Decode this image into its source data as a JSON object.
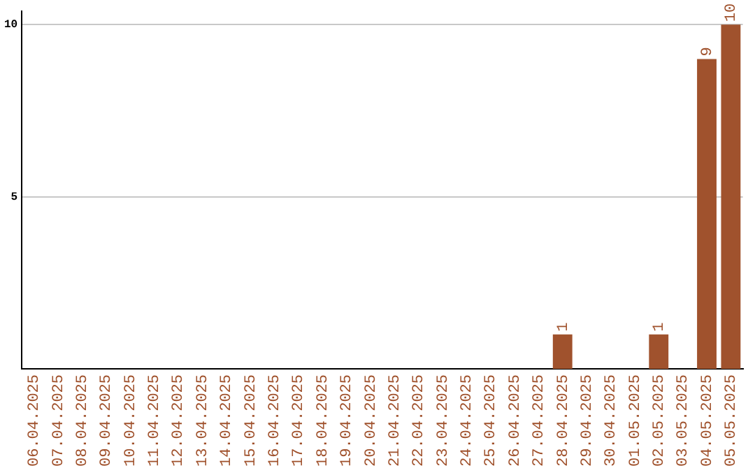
{
  "chart_data": {
    "type": "bar",
    "categories": [
      "06.04.2025",
      "07.04.2025",
      "08.04.2025",
      "09.04.2025",
      "10.04.2025",
      "11.04.2025",
      "12.04.2025",
      "13.04.2025",
      "14.04.2025",
      "15.04.2025",
      "16.04.2025",
      "17.04.2025",
      "18.04.2025",
      "19.04.2025",
      "20.04.2025",
      "21.04.2025",
      "22.04.2025",
      "23.04.2025",
      "24.04.2025",
      "25.04.2025",
      "26.04.2025",
      "27.04.2025",
      "28.04.2025",
      "29.04.2025",
      "30.04.2025",
      "01.05.2025",
      "02.05.2025",
      "03.05.2025",
      "04.05.2025",
      "05.05.2025"
    ],
    "values": [
      0,
      0,
      0,
      0,
      0,
      0,
      0,
      0,
      0,
      0,
      0,
      0,
      0,
      0,
      0,
      0,
      0,
      0,
      0,
      0,
      0,
      0,
      1,
      0,
      0,
      0,
      1,
      0,
      9,
      10
    ],
    "value_labels": [
      null,
      null,
      null,
      null,
      null,
      null,
      null,
      null,
      null,
      null,
      null,
      null,
      null,
      null,
      null,
      null,
      null,
      null,
      null,
      null,
      null,
      null,
      "1",
      null,
      null,
      null,
      "1",
      null,
      "9",
      "10"
    ],
    "color": "#a0522d",
    "ylim": [
      0,
      10.4
    ],
    "yticks": [
      5,
      10
    ],
    "grid": "y",
    "legend": false
  }
}
